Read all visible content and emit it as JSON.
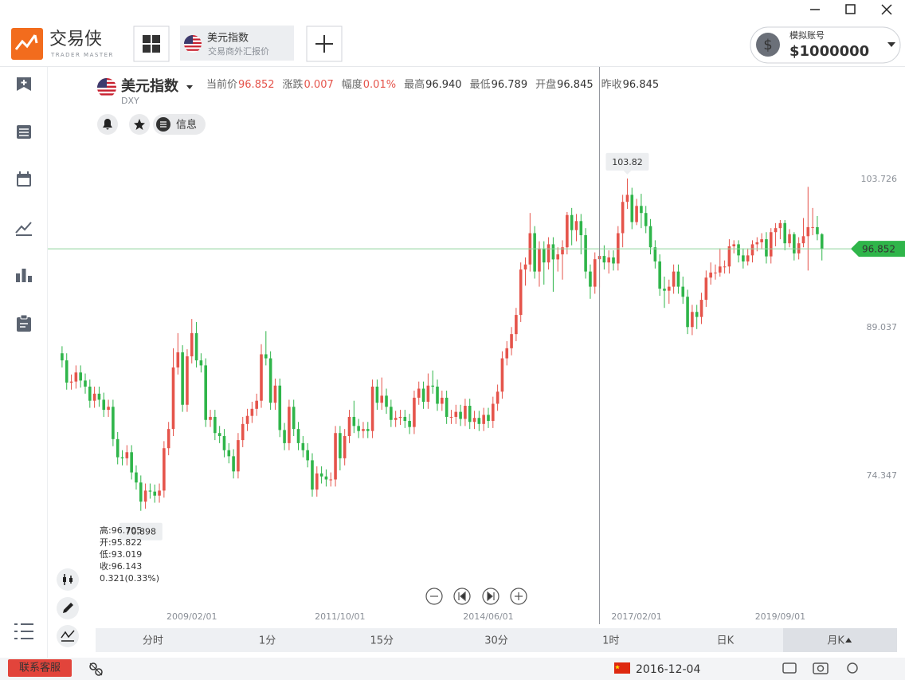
{
  "app": {
    "logo_text": "交易侠",
    "logo_sub": "TRADER MASTER",
    "tab_title": "美元指数",
    "tab_sub": "交易商外汇报价",
    "account_label": "模拟账号",
    "account_balance": "$1000000"
  },
  "sidebar": [
    "自选",
    "快讯",
    "日历",
    "报价",
    "涨跌榜",
    "订单"
  ],
  "quote": {
    "name": "美元指数",
    "code": "DXY",
    "fields": [
      {
        "label": "当前价",
        "value": "96.852"
      },
      {
        "label": "涨跌",
        "value": "0.007"
      },
      {
        "label": "幅度",
        "value": "0.01%"
      },
      {
        "label": "最高",
        "value": "96.940"
      },
      {
        "label": "最低",
        "value": "96.789"
      },
      {
        "label": "开盘",
        "value": "96.845"
      },
      {
        "label": "昨收",
        "value": "96.845"
      }
    ],
    "info_button": "信息"
  },
  "chart_data": {
    "type": "candlestick",
    "up_color": "#e5544b",
    "down_color": "#2fb54a",
    "open": [
      86.5,
      85.8,
      83.6,
      83.7,
      84.6,
      83.8,
      83.2,
      81.8,
      82.5,
      81.9,
      80.9,
      81.2,
      78.0,
      76.2,
      76.1,
      76.7,
      74.7,
      73.7,
      71.8,
      72.9,
      72.8,
      72.4,
      72.9,
      77.1,
      79.0,
      85.1,
      86.6,
      81.4,
      86.2,
      88.5,
      85.8,
      85.3,
      79.9,
      80.2,
      78.6,
      78.3,
      76.9,
      76.3,
      74.8,
      77.9,
      79.5,
      80.3,
      81.0,
      81.8,
      86.4,
      86.0,
      81.6,
      83.3,
      78.9,
      77.6,
      81.2,
      79.0,
      77.6,
      76.9,
      75.9,
      73.0,
      74.6,
      74.3,
      74.0,
      74.0,
      78.6,
      76.1,
      78.3,
      80.2,
      79.3,
      78.8,
      79.0,
      78.8,
      83.2,
      81.6,
      82.3,
      81.2,
      79.9,
      80.1,
      80.2,
      79.8,
      79.2,
      82.1,
      83.0,
      81.7,
      83.3,
      83.2,
      81.5,
      82.1,
      80.2,
      80.2,
      80.7,
      80.0,
      81.3,
      79.7,
      80.1,
      79.5,
      80.4,
      79.8,
      81.5,
      82.7,
      86.0,
      87.0,
      88.4,
      90.3,
      94.8,
      95.3,
      98.4,
      94.6,
      96.9,
      95.5,
      97.3,
      95.8,
      96.3,
      97.0,
      100.2,
      98.7,
      99.6,
      98.2,
      94.6,
      93.1,
      95.822,
      96.143,
      95.5,
      96.0,
      95.4,
      98.4,
      101.5,
      102.2,
      99.5,
      101.1,
      100.4,
      99.1,
      97.0,
      95.6,
      92.9,
      92.7,
      93.1,
      94.6,
      93.1,
      92.1,
      89.1,
      90.6,
      90.1,
      91.8,
      94.0,
      94.5,
      94.5,
      95.1,
      95.1,
      97.1,
      97.3,
      96.2,
      95.6,
      96.2,
      97.3,
      97.5,
      97.8,
      96.1,
      98.5,
      98.9,
      99.4,
      97.4,
      98.3,
      96.4,
      97.4,
      98.1,
      99.0,
      99.0,
      98.3
    ],
    "high": [
      87.2,
      86.5,
      84.4,
      85.3,
      85.3,
      84.5,
      83.9,
      83.2,
      83.2,
      82.6,
      81.9,
      81.9,
      78.7,
      76.9,
      77.4,
      77.4,
      75.4,
      74.4,
      73.6,
      73.6,
      73.5,
      73.6,
      77.8,
      79.7,
      87.0,
      88.5,
      87.3,
      86.9,
      89.9,
      89.6,
      86.5,
      86.0,
      80.9,
      80.9,
      79.3,
      79.0,
      77.6,
      77.0,
      78.6,
      80.2,
      81.0,
      81.7,
      82.5,
      87.4,
      88.7,
      86.7,
      84.0,
      84.0,
      79.6,
      81.9,
      81.9,
      79.7,
      78.3,
      77.6,
      76.6,
      75.3,
      75.3,
      75.0,
      74.7,
      79.3,
      79.3,
      79.0,
      80.9,
      81.8,
      80.0,
      79.7,
      79.7,
      83.9,
      83.9,
      84.1,
      83.0,
      81.9,
      80.8,
      80.9,
      80.9,
      80.5,
      82.8,
      83.7,
      83.7,
      84.5,
      84.8,
      83.9,
      82.8,
      82.8,
      80.9,
      81.4,
      81.4,
      82.0,
      82.0,
      80.8,
      80.8,
      81.1,
      81.1,
      82.2,
      83.4,
      86.7,
      87.7,
      89.1,
      91.0,
      95.5,
      96.0,
      100.4,
      99.1,
      97.6,
      97.6,
      98.0,
      98.0,
      97.0,
      97.7,
      100.5,
      100.9,
      100.3,
      100.3,
      98.9,
      95.3,
      96.5,
      96.705,
      97.2,
      96.7,
      96.7,
      99.1,
      102.2,
      103.82,
      102.9,
      101.8,
      102.3,
      101.1,
      99.8,
      97.7,
      96.3,
      94.1,
      93.8,
      95.3,
      95.3,
      94.1,
      92.8,
      91.3,
      91.3,
      92.5,
      94.7,
      95.5,
      95.3,
      96.9,
      95.7,
      97.8,
      97.7,
      97.7,
      96.9,
      96.9,
      97.7,
      98.0,
      98.4,
      98.5,
      98.9,
      99.4,
      99.7,
      99.7,
      98.8,
      98.5,
      98.0,
      99.9,
      102.99,
      100.9,
      100.1,
      98.4
    ],
    "low": [
      85.1,
      82.9,
      82.9,
      83.0,
      83.1,
      82.5,
      81.1,
      81.1,
      81.2,
      80.2,
      80.2,
      77.3,
      75.5,
      75.4,
      75.4,
      74.0,
      73.0,
      70.898,
      71.1,
      72.1,
      71.7,
      71.7,
      72.2,
      76.4,
      78.3,
      84.4,
      80.7,
      80.7,
      85.5,
      85.1,
      84.6,
      79.2,
      79.2,
      77.9,
      77.6,
      76.2,
      75.6,
      74.1,
      74.1,
      77.2,
      78.8,
      79.6,
      80.3,
      81.1,
      85.3,
      80.9,
      80.9,
      78.2,
      76.9,
      76.9,
      78.3,
      76.9,
      76.2,
      75.2,
      72.3,
      72.3,
      73.6,
      73.3,
      73.3,
      73.3,
      74.9,
      75.4,
      77.6,
      78.6,
      78.1,
      78.1,
      78.1,
      78.1,
      80.9,
      80.9,
      80.5,
      79.2,
      79.2,
      79.4,
      79.1,
      78.5,
      78.5,
      81.4,
      81.0,
      81.0,
      82.5,
      80.8,
      80.8,
      79.5,
      79.5,
      79.5,
      79.3,
      79.3,
      79.0,
      79.0,
      78.8,
      78.8,
      79.1,
      79.1,
      80.8,
      82.0,
      85.3,
      86.3,
      87.7,
      89.6,
      93.2,
      94.6,
      93.9,
      93.1,
      93.3,
      94.8,
      92.6,
      94.6,
      93.8,
      96.3,
      97.2,
      97.6,
      96.3,
      93.9,
      91.9,
      92.4,
      93.019,
      94.8,
      94.4,
      94.7,
      94.7,
      97.0,
      100.8,
      98.8,
      99.2,
      98.9,
      98.4,
      96.3,
      94.9,
      92.2,
      91.0,
      91.4,
      92.4,
      92.4,
      91.4,
      88.4,
      88.3,
      88.9,
      89.4,
      91.1,
      93.3,
      93.8,
      94.1,
      94.4,
      94.4,
      96.4,
      95.5,
      94.9,
      95.2,
      95.5,
      96.6,
      96.8,
      95.4,
      95.4,
      97.1,
      97.8,
      96.7,
      97.0,
      95.7,
      95.8,
      97.0,
      94.7,
      98.2,
      97.7,
      95.7
    ],
    "close": [
      85.8,
      83.6,
      83.7,
      84.6,
      83.8,
      83.2,
      81.8,
      82.5,
      81.9,
      80.9,
      81.2,
      78.0,
      76.2,
      76.1,
      76.7,
      74.7,
      73.7,
      71.8,
      72.9,
      72.8,
      72.4,
      72.9,
      77.1,
      79.0,
      85.1,
      86.6,
      81.4,
      86.2,
      88.5,
      85.8,
      85.3,
      79.9,
      80.2,
      78.6,
      78.3,
      76.9,
      76.3,
      74.8,
      77.9,
      79.5,
      80.3,
      81.0,
      81.8,
      86.4,
      86.0,
      81.6,
      83.3,
      78.9,
      77.6,
      81.2,
      79.0,
      77.6,
      76.9,
      75.9,
      73.0,
      74.6,
      74.3,
      74.0,
      74.0,
      78.6,
      76.1,
      78.3,
      80.2,
      79.3,
      78.8,
      79.0,
      78.8,
      83.2,
      81.6,
      82.3,
      81.2,
      79.9,
      80.1,
      80.2,
      79.8,
      79.2,
      82.1,
      83.0,
      81.7,
      83.3,
      83.2,
      81.5,
      82.1,
      80.2,
      80.2,
      80.7,
      80.0,
      81.3,
      79.7,
      80.1,
      79.5,
      80.4,
      79.8,
      81.5,
      82.7,
      86.0,
      87.0,
      88.4,
      90.3,
      94.8,
      95.3,
      98.4,
      94.6,
      96.9,
      95.5,
      97.3,
      95.8,
      96.3,
      97.0,
      100.2,
      98.7,
      99.6,
      98.2,
      94.6,
      93.1,
      95.822,
      96.143,
      95.5,
      96.0,
      95.4,
      98.4,
      101.5,
      102.2,
      99.5,
      101.1,
      100.4,
      99.1,
      97.0,
      95.6,
      92.9,
      92.7,
      93.1,
      94.6,
      93.1,
      92.1,
      89.1,
      90.6,
      90.1,
      91.8,
      94.0,
      94.5,
      94.5,
      95.1,
      95.1,
      97.1,
      97.3,
      96.2,
      95.6,
      96.2,
      97.3,
      97.5,
      97.8,
      96.1,
      98.5,
      98.9,
      99.4,
      97.4,
      98.3,
      96.4,
      97.4,
      98.1,
      99.0,
      99.0,
      98.3,
      96.852
    ],
    "xlim": [
      -0.5,
      168
    ],
    "xticks": [
      {
        "value": 28,
        "label": "2009/02/01"
      },
      {
        "value": 60,
        "label": "2011/10/01"
      },
      {
        "value": 92,
        "label": "2014/06/01"
      },
      {
        "value": 124,
        "label": "2017/02/01"
      },
      {
        "value": 155,
        "label": "2019/09/01"
      }
    ],
    "ylim": [
      61.48,
      106.89
    ],
    "yticks": [
      74.347,
      89.037,
      103.726
    ],
    "hover_labels": [
      "高:",
      "开:",
      "低:",
      "收:"
    ],
    "hover_change": "0.321(0.33%)"
  },
  "periods": [
    "分时",
    "1分",
    "15分",
    "30分",
    "1时",
    "日K",
    "月K"
  ],
  "footer": {
    "support": "联系客服",
    "datetime": "2016-12-04"
  }
}
